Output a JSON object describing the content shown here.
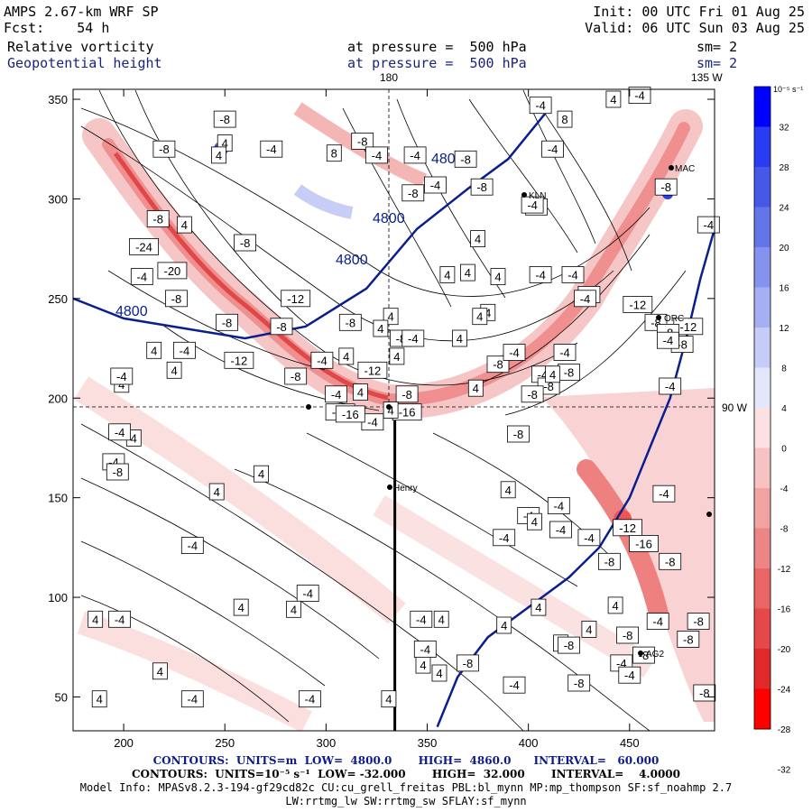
{
  "header": {
    "model": "AMPS 2.67-km WRF SP",
    "fcst": "Fcst:    54 h",
    "init": "Init: 00 UTC Fri 01 Aug 25",
    "valid": "Valid: 06 UTC Sun 03 Aug 25",
    "field1": "Relative vorticity",
    "field2": "Geopotential height",
    "level1": "at pressure =  500 hPa",
    "level2": "at pressure =  500 hPa",
    "sm1": "sm= 2",
    "sm2": "sm= 2"
  },
  "map_labels": {
    "lon_180": "180",
    "lon_135": "135 W",
    "lon_90": "90 W",
    "stations": [
      "Henry",
      "AG2",
      "ORC",
      "MAC",
      "KLN"
    ]
  },
  "colors": {
    "height_contour": "#0a1f8f",
    "vorticity_positive": "#1f3ee8",
    "vorticity_negative": "#e02020",
    "background": "#ffffff"
  },
  "colorbar": {
    "unit": "10⁻⁵ s⁻¹",
    "ticks": [
      "32",
      "28",
      "24",
      "20",
      "16",
      "12",
      "8",
      "4",
      "0",
      "-4",
      "-8",
      "-12",
      "-16",
      "-20",
      "-24",
      "-28",
      "-32"
    ]
  },
  "chart_data": {
    "type": "contour map",
    "x_axis": {
      "range": [
        175,
        492
      ],
      "ticks": [
        200,
        250,
        300,
        350,
        400,
        450
      ]
    },
    "y_axis": {
      "range": [
        33,
        355
      ],
      "ticks": [
        50,
        100,
        150,
        200,
        250,
        300,
        350
      ]
    },
    "contour_labels_vorticity": [
      "4",
      "-4",
      "-8",
      "-12",
      "-16",
      "-20",
      "-24",
      "8"
    ],
    "height_contour_label": "4800",
    "height_line": [
      [
        175,
        250
      ],
      [
        200,
        240
      ],
      [
        230,
        235
      ],
      [
        260,
        230
      ],
      [
        290,
        236
      ],
      [
        320,
        255
      ],
      [
        345,
        285
      ],
      [
        370,
        305
      ],
      [
        390,
        320
      ],
      [
        410,
        345
      ]
    ],
    "height_line2": [
      [
        355,
        35
      ],
      [
        365,
        60
      ],
      [
        380,
        80
      ],
      [
        400,
        95
      ],
      [
        420,
        110
      ],
      [
        435,
        125
      ],
      [
        450,
        150
      ],
      [
        460,
        175
      ],
      [
        470,
        200
      ],
      [
        478,
        230
      ],
      [
        485,
        260
      ],
      [
        492,
        285
      ]
    ],
    "section_line": {
      "x": 334,
      "y_range": [
        33,
        197
      ]
    }
  },
  "footer": {
    "line1": "CONTOURS:  UNITS=m  LOW=  4800.0       HIGH=  4860.0      INTERVAL=   60.000",
    "line2": "CONTOURS:  UNITS=10⁻⁵ s⁻¹  LOW= -32.000       HIGH=  32.000       INTERVAL=    4.0000",
    "line3": "Model Info: MPASv8.2.3-194-gf29cd82c CU:cu_grell_freitas PBL:bl_mynn MP:mp_thompson SF:sf_noahmp 2.7",
    "line4": "LW:rrtmg_lw SW:rrtmg_sw SFLAY:sf_mynn"
  }
}
